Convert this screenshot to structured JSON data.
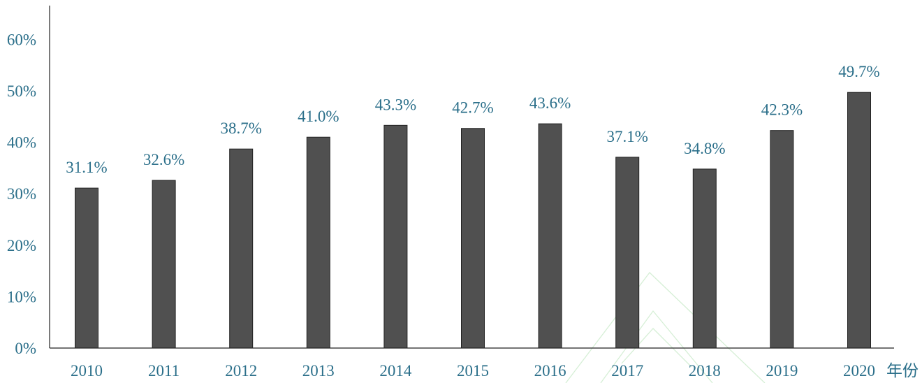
{
  "chart_data": {
    "type": "bar",
    "categories": [
      "2010",
      "2011",
      "2012",
      "2013",
      "2014",
      "2015",
      "2016",
      "2017",
      "2018",
      "2019",
      "2020"
    ],
    "values": [
      31.1,
      32.6,
      38.7,
      41.0,
      43.3,
      42.7,
      43.6,
      37.1,
      34.8,
      42.3,
      49.7
    ],
    "data_labels": [
      "31.1%",
      "32.6%",
      "38.7%",
      "41.0%",
      "43.3%",
      "42.7%",
      "43.6%",
      "37.1%",
      "34.8%",
      "42.3%",
      "49.7%"
    ],
    "y_ticks": [
      "0%",
      "10%",
      "20%",
      "30%",
      "40%",
      "50%",
      "60%"
    ],
    "ylim": [
      0,
      67
    ],
    "title": "",
    "xlabel": "年份",
    "ylabel": "",
    "grid": false,
    "colors": {
      "bar": "#505050",
      "text": "#2b6f8a"
    }
  }
}
